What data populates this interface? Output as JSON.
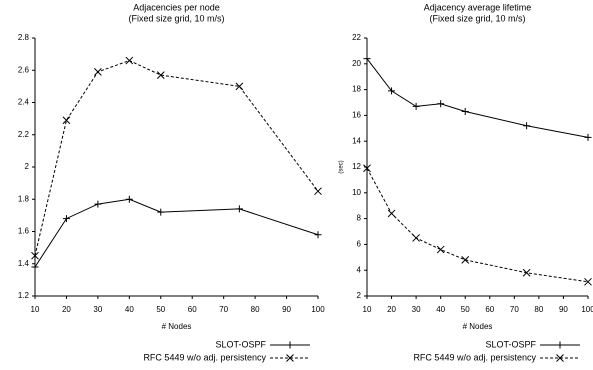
{
  "chart_data": [
    {
      "type": "line",
      "title": "Adjacencies per node",
      "subtitle": "(Fixed size grid, 10 m/s)",
      "xlabel": "# Nodes",
      "x": [
        10,
        20,
        30,
        40,
        50,
        75,
        100
      ],
      "series": [
        {
          "name": "SLOT-OSPF",
          "color": "#000000",
          "dashed": false,
          "marker": "plus",
          "values": [
            1.38,
            1.68,
            1.77,
            1.8,
            1.72,
            1.74,
            1.58
          ]
        },
        {
          "name": "RFC 5449 w/o adj. persistency",
          "color": "#000000",
          "dashed": true,
          "marker": "x",
          "values": [
            1.45,
            2.29,
            2.59,
            2.66,
            2.57,
            2.5,
            1.85
          ]
        }
      ],
      "xlim": [
        10,
        100
      ],
      "xticks": [
        10,
        20,
        30,
        40,
        50,
        60,
        70,
        80,
        90,
        100
      ],
      "ylim": [
        1.2,
        2.8
      ],
      "yticks": [
        1.2,
        1.4,
        1.6,
        1.8,
        2,
        2.2,
        2.4,
        2.6,
        2.8
      ],
      "legend": "below-right"
    },
    {
      "type": "line",
      "title": "Adjacency average lifetime",
      "subtitle": "(Fixed size grid, 10 m/s)",
      "xlabel": "# Nodes",
      "ylabel": "(sec)",
      "x": [
        10,
        20,
        30,
        40,
        50,
        75,
        100
      ],
      "series": [
        {
          "name": "SLOT-OSPF",
          "color": "#000000",
          "dashed": false,
          "marker": "plus",
          "values": [
            20.4,
            17.9,
            16.7,
            16.9,
            16.3,
            15.2,
            14.3
          ]
        },
        {
          "name": "RFC 5449 w/o adj. persistency",
          "color": "#000000",
          "dashed": true,
          "marker": "x",
          "values": [
            11.9,
            8.4,
            6.5,
            5.6,
            4.8,
            3.8,
            3.1
          ]
        }
      ],
      "xlim": [
        10,
        100
      ],
      "xticks": [
        10,
        20,
        30,
        40,
        50,
        60,
        70,
        80,
        90,
        100
      ],
      "ylim": [
        2,
        22
      ],
      "yticks": [
        2,
        4,
        6,
        8,
        10,
        12,
        14,
        16,
        18,
        20,
        22
      ],
      "legend": "below-right"
    }
  ]
}
